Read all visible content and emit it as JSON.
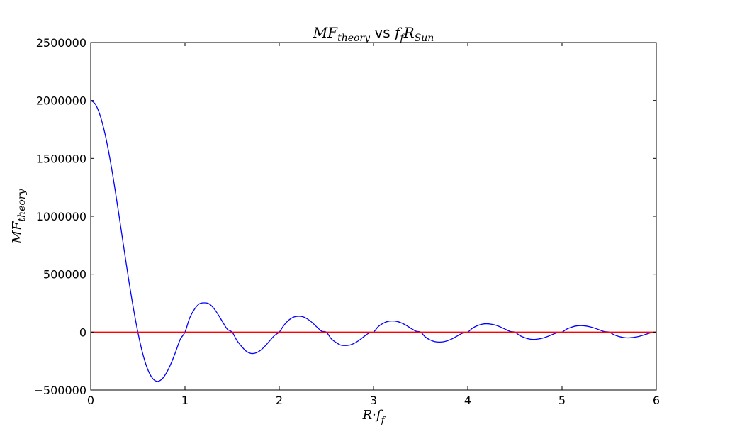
{
  "chart_data": {
    "type": "line",
    "title": {
      "left": "MF",
      "left_sub": "theory",
      "mid": " vs ",
      "right_a": "f",
      "right_a_sub": "f",
      "right_b": "R",
      "right_b_sub": "Sun"
    },
    "xlabel": {
      "main": "R·f",
      "sub": "f"
    },
    "ylabel": {
      "main": "MF",
      "sub": "theory"
    },
    "xlim": [
      0,
      6
    ],
    "ylim": [
      -500000,
      2500000
    ],
    "xticks": [
      0,
      1,
      2,
      3,
      4,
      5,
      6
    ],
    "xtick_labels": [
      "0",
      "1",
      "2",
      "3",
      "4",
      "5",
      "6"
    ],
    "yticks": [
      -500000,
      0,
      500000,
      1000000,
      1500000,
      2000000,
      2500000
    ],
    "ytick_labels": [
      "−500000",
      "0",
      "500000",
      "1000000",
      "1500000",
      "2000000",
      "2500000"
    ],
    "grid": false,
    "series": [
      {
        "color": "#0000ff",
        "x": [
          0,
          0.05,
          0.1,
          0.15,
          0.2,
          0.25,
          0.3,
          0.35,
          0.4,
          0.45,
          0.5,
          0.55,
          0.6,
          0.65,
          0.7,
          0.75,
          0.8,
          0.85,
          0.9,
          0.95,
          1.0,
          1.05,
          1.1,
          1.15,
          1.2,
          1.25,
          1.3,
          1.35,
          1.4,
          1.45,
          1.5,
          1.55,
          1.6,
          1.65,
          1.7,
          1.75,
          1.8,
          1.85,
          1.9,
          1.95,
          2.0,
          2.05,
          2.1,
          2.15,
          2.2,
          2.25,
          2.3,
          2.35,
          2.4,
          2.45,
          2.5,
          2.55,
          2.6,
          2.65,
          2.7,
          2.75,
          2.8,
          2.85,
          2.9,
          2.95,
          3.0,
          3.05,
          3.1,
          3.15,
          3.2,
          3.25,
          3.3,
          3.35,
          3.4,
          3.45,
          3.5,
          3.55,
          3.6,
          3.65,
          3.7,
          3.75,
          3.8,
          3.85,
          3.9,
          3.95,
          4.0,
          4.05,
          4.1,
          4.15,
          4.2,
          4.25,
          4.3,
          4.35,
          4.4,
          4.45,
          4.5,
          4.55,
          4.6,
          4.65,
          4.7,
          4.75,
          4.8,
          4.85,
          4.9,
          4.95,
          5.0,
          5.05,
          5.1,
          5.15,
          5.2,
          5.25,
          5.3,
          5.35,
          5.4,
          5.45,
          5.5,
          5.55,
          5.6,
          5.65,
          5.7,
          5.75,
          5.8,
          5.85,
          5.9,
          5.95,
          6.0
        ],
        "y": [
          2000000,
          1967000,
          1870000,
          1717000,
          1514000,
          1273000,
          1009000,
          735000,
          467000,
          219000,
          0,
          -180000,
          -312000,
          -393000,
          -425000,
          -410000,
          -356000,
          -274000,
          -172000,
          -62000,
          0,
          122000,
          197000,
          243000,
          253000,
          247000,
          211000,
          154000,
          87000,
          24000,
          0,
          -71000,
          -123000,
          -165000,
          -184000,
          -180000,
          -158000,
          -120000,
          -74000,
          -29000,
          0,
          59000,
          103000,
          129000,
          137000,
          133000,
          113000,
          82000,
          43000,
          8000,
          0,
          -56000,
          -88000,
          -111000,
          -116000,
          -111000,
          -95000,
          -69000,
          -38000,
          -9000,
          0,
          47000,
          75000,
          92000,
          96000,
          92000,
          78000,
          57000,
          31000,
          8000,
          0,
          -42000,
          -67000,
          -82000,
          -86000,
          -82000,
          -70000,
          -51000,
          -28000,
          -7000,
          0,
          34000,
          55000,
          68000,
          72000,
          68000,
          59000,
          43000,
          24000,
          6000,
          0,
          -29000,
          -47000,
          -59000,
          -63000,
          -59000,
          -51000,
          -37000,
          -20000,
          -5000,
          0,
          26000,
          42000,
          53000,
          56000,
          53000,
          45000,
          33000,
          18000,
          4000,
          0,
          -22000,
          -37000,
          -46000,
          -50000,
          -46000,
          -40000,
          -29000,
          -16000,
          -4000,
          0
        ]
      },
      {
        "color": "#ff0000",
        "x": [
          0,
          6
        ],
        "y": [
          0,
          0
        ]
      }
    ]
  }
}
